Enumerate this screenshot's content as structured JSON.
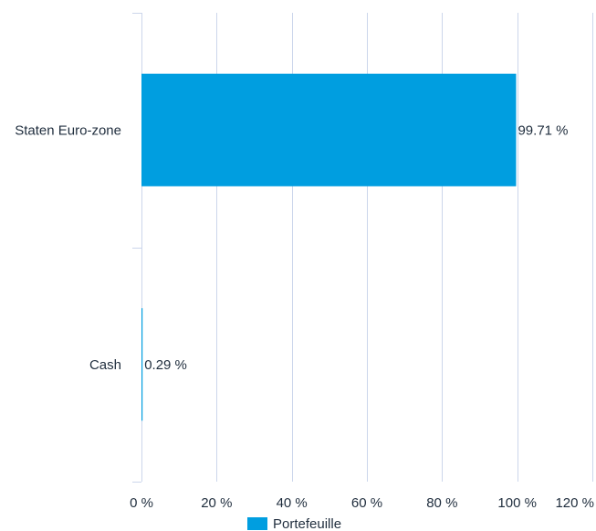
{
  "chart_data": {
    "type": "bar",
    "orientation": "horizontal",
    "categories": [
      "Staten Euro-zone",
      "Cash"
    ],
    "series": [
      {
        "name": "Portefeuille",
        "values": [
          99.71,
          0.29
        ],
        "data_labels": [
          "99.71 %",
          "0.29 %"
        ],
        "color": "#009ee0"
      }
    ],
    "x_ticks": [
      0,
      20,
      40,
      60,
      80,
      100,
      120
    ],
    "x_tick_labels": [
      "0 %",
      "20 %",
      "40 %",
      "60 %",
      "80 %",
      "100 %",
      "120 %"
    ],
    "xlim": [
      0,
      120
    ],
    "grid": true,
    "legend_position": "bottom-center",
    "grid_color": "#ccd6eb",
    "text_color": "#1f2d3d"
  }
}
